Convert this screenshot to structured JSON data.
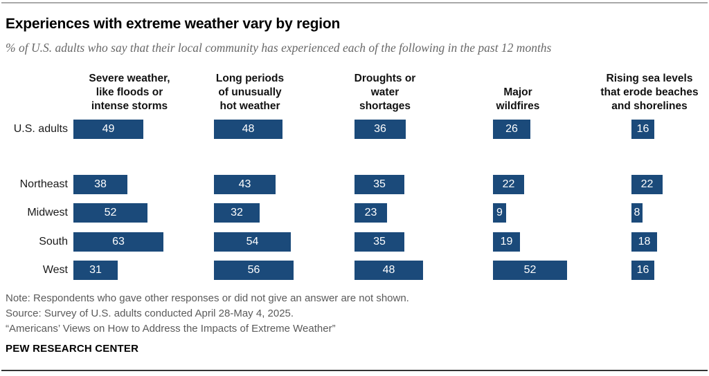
{
  "page": {
    "title": "Experiences with extreme weather vary by region",
    "subtitle": "% of U.S. adults who say that their local community has experienced each of the following in the past 12 months"
  },
  "chart_data": {
    "type": "bar",
    "orientation": "horizontal",
    "value_unit": "%",
    "xlim": [
      0,
      100
    ],
    "grid": false,
    "legend": "none",
    "bar_color": "#1B4A7A",
    "bar_label_color": "#ffffff",
    "categories": [
      "Severe weather, like floods or intense storms",
      "Long periods of unusually hot weather",
      "Droughts or water shortages",
      "Major wildfires",
      "Rising sea levels that erode beaches and shorelines"
    ],
    "category_header_lines": [
      [
        "Severe weather,",
        "like floods or",
        "intense storms"
      ],
      [
        "Long periods",
        "of unusually",
        "hot weather"
      ],
      [
        "Droughts or",
        "water",
        "shortages"
      ],
      [
        "Major",
        "wildfires"
      ],
      [
        "Rising sea levels",
        "that erode beaches",
        "and shorelines"
      ]
    ],
    "rows": [
      {
        "label": "U.S. adults",
        "group": "total",
        "values": [
          49,
          48,
          36,
          26,
          16
        ]
      },
      {
        "label": "Northeast",
        "group": "region",
        "values": [
          38,
          43,
          35,
          22,
          22
        ]
      },
      {
        "label": "Midwest",
        "group": "region",
        "values": [
          52,
          32,
          23,
          9,
          8
        ]
      },
      {
        "label": "South",
        "group": "region",
        "values": [
          63,
          54,
          35,
          19,
          18
        ]
      },
      {
        "label": "West",
        "group": "region",
        "values": [
          31,
          56,
          48,
          52,
          16
        ]
      }
    ]
  },
  "footer": {
    "note": "Note: Respondents who gave other responses or did not give an answer are not shown.",
    "source": "Source: Survey of U.S. adults conducted April 28-May 4, 2025.",
    "report": "“Americans’ Views on How to Address the Impacts of Extreme Weather”",
    "brand": "PEW RESEARCH CENTER"
  }
}
